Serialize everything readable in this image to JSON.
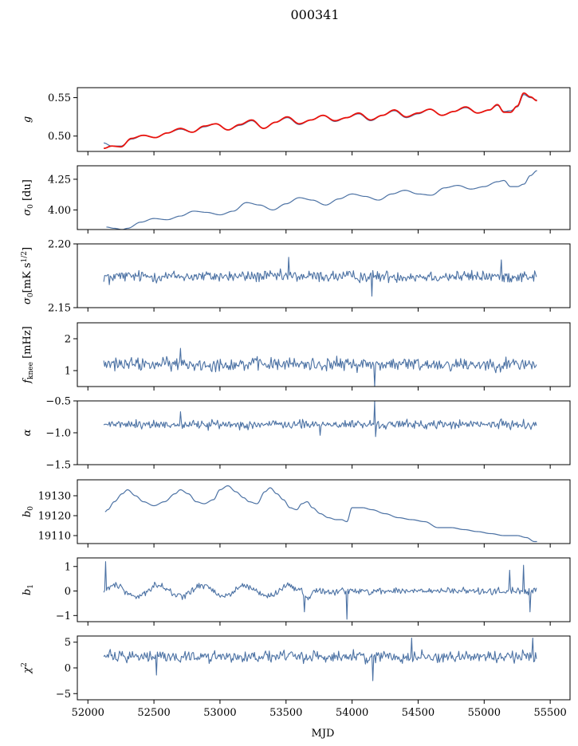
{
  "title": "000341",
  "xlabel": "MJD",
  "colors": {
    "series": "#4c72a4",
    "model": "#e8140e",
    "axes": "#000000"
  },
  "chart_data": {
    "type": "line",
    "title": "000341",
    "xlabel": "MJD",
    "xlim": [
      51920,
      55650
    ],
    "xticks": [
      52000,
      52500,
      53000,
      53500,
      54000,
      54500,
      55000,
      55500
    ],
    "x_start": 52120,
    "x_end": 55400,
    "grid": false,
    "panels": [
      {
        "id": "g",
        "ylabel": "g",
        "ylim": [
          0.48,
          0.563
        ],
        "yticks": [
          0.5,
          0.55
        ],
        "ytick_labels": [
          "0.50",
          "0.55"
        ],
        "series": [
          {
            "color": "#4c72a4",
            "x": [
              52120,
              52180,
              52250,
              52330,
              52420,
              52510,
              52600,
              52700,
              52790,
              52880,
              52970,
              53060,
              53150,
              53240,
              53330,
              53420,
              53510,
              53600,
              53690,
              53780,
              53870,
              53960,
              54050,
              54140,
              54230,
              54320,
              54410,
              54500,
              54590,
              54680,
              54770,
              54860,
              54950,
              55040,
              55100,
              55150,
              55200,
              55250,
              55300,
              55350,
              55400
            ],
            "y": [
              0.491,
              0.487,
              0.487,
              0.496,
              0.501,
              0.498,
              0.504,
              0.509,
              0.505,
              0.512,
              0.516,
              0.508,
              0.514,
              0.52,
              0.51,
              0.518,
              0.524,
              0.515,
              0.521,
              0.527,
              0.519,
              0.524,
              0.529,
              0.52,
              0.527,
              0.533,
              0.524,
              0.529,
              0.535,
              0.527,
              0.532,
              0.537,
              0.53,
              0.534,
              0.54,
              0.532,
              0.533,
              0.538,
              0.554,
              0.55,
              0.547
            ]
          },
          {
            "color": "#e8140e",
            "x": [
              52120,
              52180,
              52250,
              52330,
              52420,
              52510,
              52600,
              52700,
              52790,
              52880,
              52970,
              53060,
              53150,
              53240,
              53330,
              53420,
              53510,
              53600,
              53690,
              53780,
              53870,
              53960,
              54050,
              54140,
              54230,
              54320,
              54410,
              54500,
              54590,
              54680,
              54770,
              54860,
              54950,
              55040,
              55100,
              55150,
              55200,
              55250,
              55300,
              55350,
              55400
            ],
            "y": [
              0.484,
              0.487,
              0.486,
              0.497,
              0.501,
              0.498,
              0.504,
              0.51,
              0.505,
              0.513,
              0.516,
              0.508,
              0.515,
              0.521,
              0.51,
              0.518,
              0.525,
              0.516,
              0.521,
              0.527,
              0.52,
              0.524,
              0.53,
              0.521,
              0.527,
              0.534,
              0.525,
              0.53,
              0.535,
              0.527,
              0.532,
              0.538,
              0.53,
              0.534,
              0.541,
              0.531,
              0.531,
              0.539,
              0.556,
              0.551,
              0.546
            ]
          }
        ]
      },
      {
        "id": "sigma0",
        "ylabel": "σ0 [du]",
        "ylim": [
          3.84,
          4.36
        ],
        "yticks": [
          4.0,
          4.25
        ],
        "ytick_labels": [
          "4.00",
          "4.25"
        ],
        "series": [
          {
            "color": "#4c72a4",
            "x": [
              52140,
              52200,
              52260,
              52300,
              52400,
              52500,
              52600,
              52700,
              52800,
              52900,
              53000,
              53100,
              53200,
              53300,
              53400,
              53500,
              53600,
              53700,
              53800,
              53900,
              54000,
              54100,
              54200,
              54300,
              54400,
              54500,
              54600,
              54700,
              54800,
              54900,
              55000,
              55100,
              55150,
              55200,
              55250,
              55300,
              55350,
              55400
            ],
            "y": [
              3.86,
              3.85,
              3.84,
              3.85,
              3.9,
              3.93,
              3.92,
              3.95,
              3.99,
              3.98,
              3.96,
              3.99,
              4.06,
              4.04,
              4.0,
              4.05,
              4.1,
              4.08,
              4.04,
              4.09,
              4.13,
              4.11,
              4.08,
              4.13,
              4.16,
              4.13,
              4.12,
              4.18,
              4.2,
              4.17,
              4.19,
              4.23,
              4.24,
              4.19,
              4.19,
              4.21,
              4.28,
              4.32
            ]
          }
        ]
      },
      {
        "id": "sigma0_mk",
        "ylabel": "σ0 [mK s^1/2]",
        "ylim": [
          2.15,
          2.2
        ],
        "yticks": [
          2.15,
          2.2
        ],
        "ytick_labels": [
          "2.15",
          "2.20"
        ],
        "noise": {
          "mean": 2.1745,
          "amp": 0.004,
          "spikes": [
            [
              53520,
              2.1895
            ],
            [
              54150,
              2.159
            ],
            [
              55130,
              2.1875
            ],
            [
              52160,
              2.168
            ]
          ]
        }
      },
      {
        "id": "fknee",
        "ylabel": "f_knee [mHz]",
        "ylim": [
          0.5,
          2.5
        ],
        "yticks": [
          1,
          2
        ],
        "ytick_labels": [
          "1",
          "2"
        ],
        "noise": {
          "mean": 1.2,
          "amp": 0.18,
          "spikes": [
            [
              54170,
              0.5
            ],
            [
              52700,
              1.7
            ],
            [
              55400,
              0.95
            ]
          ]
        }
      },
      {
        "id": "alpha",
        "ylabel": "α",
        "ylim": [
          -1.5,
          -0.5
        ],
        "yticks": [
          -1.5,
          -1.0,
          -0.5
        ],
        "ytick_labels": [
          "−1.5",
          "−1.0",
          "−0.5"
        ],
        "noise": {
          "mean": -0.87,
          "amp": 0.06,
          "spikes": [
            [
              54170,
              -0.5
            ],
            [
              52700,
              -0.67
            ],
            [
              54180,
              -1.06
            ],
            [
              53760,
              -1.04
            ]
          ]
        }
      },
      {
        "id": "b0",
        "ylabel": "b0",
        "ylim": [
          19106,
          19138
        ],
        "yticks": [
          19110,
          19120,
          19130
        ],
        "ytick_labels": [
          "19110",
          "19120",
          "19130"
        ],
        "series": [
          {
            "color": "#4c72a4",
            "x": [
              52130,
              52150,
              52200,
              52260,
              52300,
              52360,
              52420,
              52500,
              52580,
              52660,
              52700,
              52760,
              52820,
              52880,
              52950,
              53000,
              53060,
              53120,
              53180,
              53220,
              53280,
              53340,
              53380,
              53430,
              53480,
              53530,
              53580,
              53620,
              53660,
              53700,
              53760,
              53820,
              53880,
              53920,
              53960,
              54000,
              54080,
              54150,
              54250,
              54350,
              54450,
              54550,
              54650,
              54750,
              54850,
              54950,
              55050,
              55150,
              55250,
              55320,
              55380,
              55400
            ],
            "y": [
              19122,
              19123,
              19127,
              19131,
              19133,
              19130,
              19127,
              19125,
              19127,
              19131,
              19133,
              19131,
              19127,
              19126,
              19128,
              19133,
              19135,
              19132,
              19129,
              19127,
              19126,
              19132,
              19134,
              19131,
              19128,
              19124,
              19123,
              19126,
              19127,
              19124,
              19121,
              19119,
              19118,
              19118,
              19117,
              19124,
              19124,
              19123,
              19121,
              19119,
              19118,
              19117,
              19114,
              19114,
              19113,
              19112,
              19111,
              19110,
              19110,
              19109,
              19107,
              19107
            ]
          }
        ]
      },
      {
        "id": "b1",
        "ylabel": "b1",
        "ylim": [
          -1.25,
          1.35
        ],
        "yticks": [
          -1,
          0,
          1
        ],
        "ytick_labels": [
          "−1",
          "0",
          "1"
        ],
        "noise": {
          "mean": 0.0,
          "amp": 0.12,
          "wave_amp": 0.22,
          "wave_period": 330,
          "wave_end": 53700,
          "spikes": [
            [
              52135,
              1.2
            ],
            [
              53960,
              -1.15
            ],
            [
              53640,
              -0.85
            ],
            [
              55300,
              1.05
            ],
            [
              55350,
              -0.85
            ],
            [
              55190,
              0.85
            ]
          ]
        }
      },
      {
        "id": "chi2",
        "ylabel": "χ²",
        "ylim": [
          -6.2,
          6.2
        ],
        "yticks": [
          -5,
          0,
          5
        ],
        "ytick_labels": [
          "−5",
          "0",
          "5"
        ],
        "noise": {
          "mean": 2.2,
          "amp": 1.0,
          "spikes": [
            [
              54160,
              -2.5
            ],
            [
              54450,
              5.8
            ],
            [
              55370,
              5.8
            ],
            [
              52520,
              -1.4
            ]
          ]
        }
      }
    ]
  }
}
